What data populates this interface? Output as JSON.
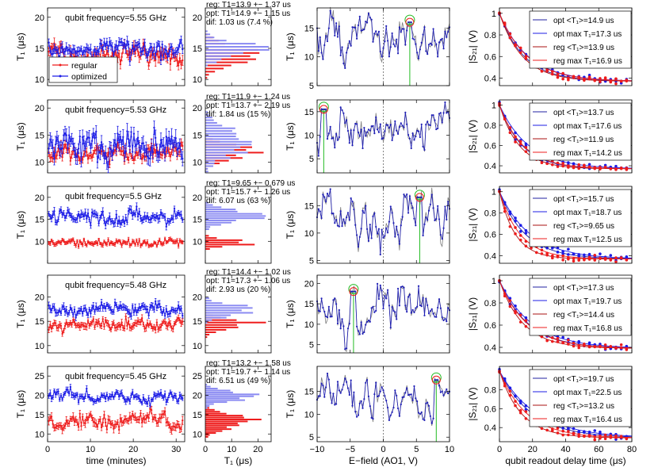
{
  "colors": {
    "regular": "#ee1c1c",
    "optimized": "#1c1ce6",
    "hist_reg": "#ee1c1c",
    "hist_opt": "#8c8cf2",
    "trace": "#7d7d7d",
    "efield_line": "#1f1fb5",
    "marker_green": "#22bb22",
    "marker_red": "#ee1c1c"
  },
  "labels": {
    "time_xlabel": "time (minutes)",
    "hist_xlabel": "T₁ (μs)",
    "efield_xlabel": "E−field (AO1, V)",
    "readout_xlabel": "qubit readout delay time (μs)",
    "t1_ylabel": "T₁ (μs)",
    "s21_ylabel": "|S₂₁| (V)",
    "legend_regular": "regular",
    "legend_optimized": "optimized"
  },
  "chart_data": [
    {
      "type": "scatter",
      "row": 0,
      "column": "time-series",
      "annotation": "qubit frequency=5.55 GHz",
      "xlabel": "time (minutes)",
      "ylabel": "T₁ (μs)",
      "xlim": [
        0,
        32
      ],
      "ylim": [
        9,
        21.5
      ],
      "xticks": [
        "0",
        "10",
        "20",
        "30"
      ],
      "yticks": [
        "10",
        "15",
        "20"
      ],
      "legend": [
        "regular",
        "optimized"
      ],
      "legend_position": "lower-left",
      "series": [
        {
          "name": "regular",
          "mean": 13.9,
          "spread": 1.37
        },
        {
          "name": "optimized",
          "mean": 14.9,
          "spread": 1.15
        }
      ]
    },
    {
      "type": "bar",
      "row": 0,
      "column": "histogram",
      "text": [
        "reg: T1=13.9 +− 1.37 us",
        "opt: T1=14.9 +− 1.15 us",
        "dif: 1.03 us (7.4 %)"
      ],
      "xlabel": "T₁ (μs)",
      "xlim": [
        0,
        25
      ],
      "ylim": [
        9,
        21.5
      ],
      "xticks": [
        "0",
        "10",
        "20"
      ],
      "yticks": [
        "10",
        "15",
        "20"
      ],
      "series": [
        {
          "name": "regular",
          "mean": 13.9,
          "spread": 1.37
        },
        {
          "name": "optimized",
          "mean": 14.9,
          "spread": 1.15
        }
      ]
    },
    {
      "type": "line",
      "row": 0,
      "column": "e-field",
      "xlabel": "E−field (AO1, V)",
      "ylabel": "T₁ (μs)",
      "xlim": [
        -10,
        10
      ],
      "ylim": [
        5,
        18.5
      ],
      "xticks": [
        "−10",
        "−5",
        "0",
        "5",
        "10"
      ],
      "yticks": [
        "5",
        "10",
        "15"
      ],
      "marker_x": 4.0,
      "marker_y": 16.0
    },
    {
      "type": "line",
      "row": 0,
      "column": "readout-decay",
      "xlabel": "qubit readout delay time (μs)",
      "ylabel": "|S₂₁| (V)",
      "xlim": [
        0,
        80
      ],
      "ylim": [
        0.33,
        1.05
      ],
      "xticks": [
        "0",
        "20",
        "40",
        "60",
        "80"
      ],
      "yticks": [
        "0.4",
        "0.6",
        "0.8",
        "1"
      ],
      "legend": [
        "opt <T₁>=14.9 us",
        "opt max T₁=17.3 us",
        "reg <T₁>=13.9 us",
        "reg max T₁=16.9 us"
      ],
      "legend_position": "top-right",
      "decay_times": [
        14.9,
        17.3,
        13.9,
        16.9
      ]
    },
    {
      "type": "scatter",
      "row": 1,
      "column": "time-series",
      "annotation": "qubit frequency=5.53 GHz",
      "xlabel": "time (minutes)",
      "ylabel": "T₁ (μs)",
      "xlim": [
        0,
        32
      ],
      "ylim": [
        8,
        21.5
      ],
      "xticks": [
        "0",
        "10",
        "20",
        "30"
      ],
      "yticks": [
        "10",
        "15",
        "20"
      ],
      "series": [
        {
          "name": "regular",
          "mean": 11.9,
          "spread": 1.24
        },
        {
          "name": "optimized",
          "mean": 13.7,
          "spread": 2.19
        }
      ]
    },
    {
      "type": "bar",
      "row": 1,
      "column": "histogram",
      "text": [
        "reg: T1=11.9 +− 1.24 us",
        "opt: T1=13.7 +− 2.19 us",
        "dif: 1.84 us (15 %)"
      ],
      "xlabel": "T₁ (μs)",
      "xlim": [
        0,
        25
      ],
      "ylim": [
        8,
        21.5
      ],
      "xticks": [
        "0",
        "10",
        "20"
      ],
      "yticks": [
        "10",
        "15",
        "20"
      ],
      "series": [
        {
          "name": "regular",
          "mean": 11.9,
          "spread": 1.24
        },
        {
          "name": "optimized",
          "mean": 13.7,
          "spread": 2.19
        }
      ]
    },
    {
      "type": "line",
      "row": 1,
      "column": "e-field",
      "xlabel": "E−field (AO1, V)",
      "ylabel": "T₁ (μs)",
      "xlim": [
        -10,
        10
      ],
      "ylim": [
        2,
        17.5
      ],
      "xticks": [
        "−10",
        "−5",
        "0",
        "5",
        "10"
      ],
      "yticks": [
        "5",
        "10",
        "15"
      ],
      "marker_x": -9.0,
      "marker_y": 15.5
    },
    {
      "type": "line",
      "row": 1,
      "column": "readout-decay",
      "xlabel": "qubit readout delay time (μs)",
      "ylabel": "|S₂₁| (V)",
      "xlim": [
        0,
        80
      ],
      "ylim": [
        0.33,
        1.05
      ],
      "xticks": [
        "0",
        "20",
        "40",
        "60",
        "80"
      ],
      "yticks": [
        "0.4",
        "0.6",
        "0.8",
        "1"
      ],
      "legend": [
        "opt <T₁>=13.7 us",
        "opt max T₁=17.6 us",
        "reg <T₁>=11.9 us",
        "reg max T₁=14.2 us"
      ],
      "legend_position": "top-right",
      "decay_times": [
        13.7,
        17.6,
        11.9,
        14.2
      ]
    },
    {
      "type": "scatter",
      "row": 2,
      "column": "time-series",
      "annotation": "qubit frequency=5.5 GHz",
      "xlabel": "time (minutes)",
      "ylabel": "T₁ (μs)",
      "xlim": [
        0,
        32
      ],
      "ylim": [
        5,
        22.5
      ],
      "xticks": [
        "0",
        "10",
        "20",
        "30"
      ],
      "yticks": [
        "10",
        "15",
        "20"
      ],
      "series": [
        {
          "name": "regular",
          "mean": 9.65,
          "spread": 0.679
        },
        {
          "name": "optimized",
          "mean": 15.7,
          "spread": 1.26
        }
      ]
    },
    {
      "type": "bar",
      "row": 2,
      "column": "histogram",
      "text": [
        "reg: T1=9.65 +− 0.679 us",
        "opt: T1=15.7 +− 1.26 us",
        "dif: 6.07 us (63 %)"
      ],
      "xlabel": "T₁ (μs)",
      "xlim": [
        0,
        25
      ],
      "ylim": [
        5,
        22.5
      ],
      "xticks": [
        "0",
        "10",
        "20"
      ],
      "yticks": [
        "10",
        "15",
        "20"
      ],
      "series": [
        {
          "name": "regular",
          "mean": 9.65,
          "spread": 0.679
        },
        {
          "name": "optimized",
          "mean": 15.7,
          "spread": 1.26
        }
      ]
    },
    {
      "type": "line",
      "row": 2,
      "column": "e-field",
      "xlabel": "E−field (AO1, V)",
      "ylabel": "T₁ (μs)",
      "xlim": [
        -10,
        10
      ],
      "ylim": [
        4.5,
        18.5
      ],
      "xticks": [
        "−10",
        "−5",
        "0",
        "5",
        "10"
      ],
      "yticks": [
        "5",
        "10",
        "15"
      ],
      "marker_x": 5.5,
      "marker_y": 16.5
    },
    {
      "type": "line",
      "row": 2,
      "column": "readout-decay",
      "xlabel": "qubit readout delay time (μs)",
      "ylabel": "|S₂₁| (V)",
      "xlim": [
        0,
        80
      ],
      "ylim": [
        0.33,
        1.05
      ],
      "xticks": [
        "0",
        "20",
        "40",
        "60",
        "80"
      ],
      "yticks": [
        "0.4",
        "0.6",
        "0.8",
        "1"
      ],
      "legend": [
        "opt <T₁>=15.7 us",
        "opt max T₁=18.7 us",
        "reg <T₁>=9.65 us",
        "reg max T₁=12.5 us"
      ],
      "legend_position": "top-right",
      "decay_times": [
        15.7,
        18.7,
        9.65,
        12.5
      ]
    },
    {
      "type": "scatter",
      "row": 3,
      "column": "time-series",
      "annotation": "qubit frequency=5.48 GHz",
      "xlabel": "time (minutes)",
      "ylabel": "T₁ (μs)",
      "xlim": [
        0,
        32
      ],
      "ylim": [
        8.5,
        24.5
      ],
      "xticks": [
        "0",
        "10",
        "20",
        "30"
      ],
      "yticks": [
        "10",
        "15",
        "20"
      ],
      "series": [
        {
          "name": "regular",
          "mean": 14.4,
          "spread": 1.02
        },
        {
          "name": "optimized",
          "mean": 17.3,
          "spread": 1.06
        }
      ]
    },
    {
      "type": "bar",
      "row": 3,
      "column": "histogram",
      "text": [
        "reg: T1=14.4 +− 1.02 us",
        "opt: T1=17.3 +− 1.06 us",
        "dif: 2.93 us (20 %)"
      ],
      "xlabel": "T₁ (μs)",
      "xlim": [
        0,
        25
      ],
      "ylim": [
        8.5,
        24.5
      ],
      "xticks": [
        "0",
        "10",
        "20"
      ],
      "yticks": [
        "10",
        "15",
        "20"
      ],
      "series": [
        {
          "name": "regular",
          "mean": 14.4,
          "spread": 1.02
        },
        {
          "name": "optimized",
          "mean": 17.3,
          "spread": 1.06
        }
      ]
    },
    {
      "type": "line",
      "row": 3,
      "column": "e-field",
      "xlabel": "E−field (AO1, V)",
      "ylabel": "T₁ (μs)",
      "xlim": [
        -10,
        10
      ],
      "ylim": [
        3,
        22
      ],
      "xticks": [
        "−10",
        "−5",
        "0",
        "5",
        "10"
      ],
      "yticks": [
        "5",
        "10",
        "15",
        "20"
      ],
      "marker_x": -4.5,
      "marker_y": 18.0
    },
    {
      "type": "line",
      "row": 3,
      "column": "readout-decay",
      "xlabel": "qubit readout delay time (μs)",
      "ylabel": "|S₂₁| (V)",
      "xlim": [
        0,
        80
      ],
      "ylim": [
        0.35,
        1.05
      ],
      "xticks": [
        "0",
        "20",
        "40",
        "60",
        "80"
      ],
      "yticks": [
        "0.4",
        "0.6",
        "0.8",
        "1"
      ],
      "legend": [
        "opt <T₁>=17.3 us",
        "opt max T₁=19.7 us",
        "reg <T₁>=14.4 us",
        "reg max T₁=16.8 us"
      ],
      "legend_position": "top-right",
      "decay_times": [
        17.3,
        19.7,
        14.4,
        16.8
      ]
    },
    {
      "type": "scatter",
      "row": 4,
      "column": "time-series",
      "annotation": "qubit frequency=5.45 GHz",
      "xlabel": "time (minutes)",
      "ylabel": "T₁ (μs)",
      "xlim": [
        0,
        32
      ],
      "ylim": [
        8,
        27.5
      ],
      "xticks": [
        "0",
        "10",
        "20",
        "30"
      ],
      "yticks": [
        "10",
        "15",
        "20",
        "25"
      ],
      "series": [
        {
          "name": "regular",
          "mean": 13.2,
          "spread": 1.58
        },
        {
          "name": "optimized",
          "mean": 19.7,
          "spread": 1.14
        }
      ]
    },
    {
      "type": "bar",
      "row": 4,
      "column": "histogram",
      "text": [
        "reg: T1=13.2 +− 1.58 us",
        "opt: T1=19.7 +− 1.14 us",
        "dif: 6.51 us (49 %)"
      ],
      "xlabel": "T₁ (μs)",
      "xlim": [
        0,
        25
      ],
      "ylim": [
        8,
        27.5
      ],
      "xticks": [
        "0",
        "10",
        "20"
      ],
      "yticks": [
        "10",
        "15",
        "20",
        "25"
      ],
      "series": [
        {
          "name": "regular",
          "mean": 13.2,
          "spread": 1.58
        },
        {
          "name": "optimized",
          "mean": 19.7,
          "spread": 1.14
        }
      ]
    },
    {
      "type": "line",
      "row": 4,
      "column": "e-field",
      "xlabel": "E−field (AO1, V)",
      "ylabel": "T₁ (μs)",
      "xlim": [
        -10,
        10
      ],
      "ylim": [
        4,
        20.5
      ],
      "xticks": [
        "−10",
        "−5",
        "0",
        "5",
        "10"
      ],
      "yticks": [
        "5",
        "10",
        "15"
      ],
      "marker_x": 8.0,
      "marker_y": 17.5
    },
    {
      "type": "line",
      "row": 4,
      "column": "readout-decay",
      "xlabel": "qubit readout delay time (μs)",
      "ylabel": "|S₂₁| (V)",
      "xlim": [
        0,
        80
      ],
      "ylim": [
        0.25,
        1.05
      ],
      "xticks": [
        "0",
        "20",
        "40",
        "60",
        "80"
      ],
      "yticks": [
        "0.4",
        "0.6",
        "0.8"
      ],
      "legend": [
        "opt <T₁>=19.7 us",
        "opt max T₁=22.5 us",
        "reg <T₁>=13.2 us",
        "reg max T₁=16.4 us"
      ],
      "legend_position": "top-right",
      "decay_times": [
        19.7,
        22.5,
        13.2,
        16.4
      ]
    }
  ]
}
